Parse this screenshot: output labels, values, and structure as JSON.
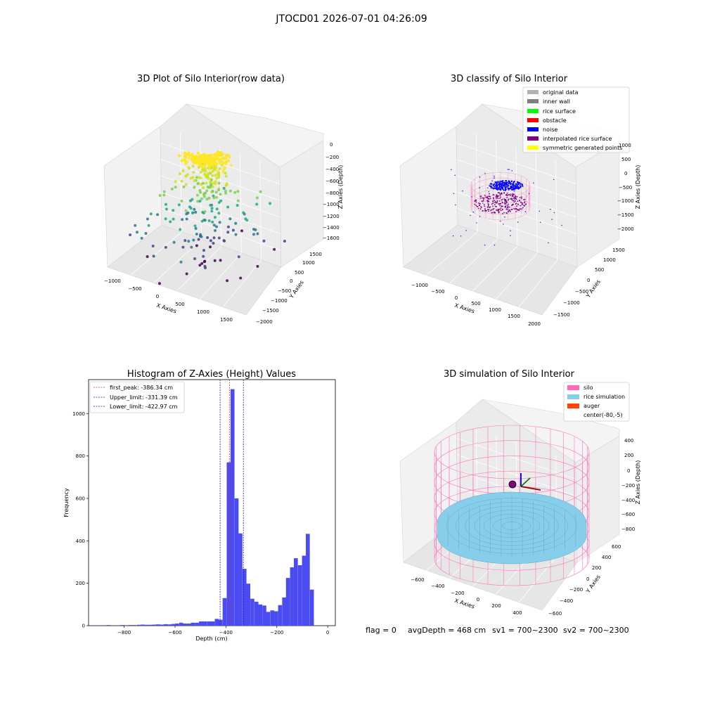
{
  "suptitle": "JTOCD01 2026-07-01 04:26:09",
  "footer": {
    "flag": "flag = 0",
    "avg": "avgDepth = 468 cm",
    "sv1": "sv1 = 700~2300",
    "sv2": "sv2 = 700~2300"
  },
  "colors": {
    "hist_bar": "#4b4bf2",
    "peak_line": "#e03030",
    "limit_line": "#1a1ad6",
    "silo": "#ff69b4",
    "rice": "#87ceeb",
    "auger": "#ff4500",
    "pane": "#f2f2f2"
  },
  "chart_data": [
    {
      "id": "raw",
      "type": "scatter",
      "title": "3D Plot of Silo Interior(row data)",
      "xlabel": "X Axies",
      "ylabel": "Y Axies",
      "zlabel": "Z Axies (Depth)",
      "x_ticks": [
        "−1000",
        "−500",
        "0",
        "500",
        "1000",
        "1500"
      ],
      "y_ticks": [
        "−2000",
        "−1500",
        "−1000",
        "−500",
        "0",
        "500",
        "1000",
        "1500"
      ],
      "z_ticks": [
        "0",
        "−200",
        "−400",
        "−600",
        "−800",
        "−1000",
        "−1200",
        "−1400",
        "−1600"
      ],
      "colormap": "viridis"
    },
    {
      "id": "classify",
      "type": "scatter",
      "title": "3D classify of Silo Interior",
      "xlabel": "X Axies",
      "ylabel": "Y Axies",
      "zlabel": "Z Axies (Depth)",
      "x_ticks": [
        "−1000",
        "−500",
        "0",
        "500",
        "1000",
        "1500",
        "2000"
      ],
      "y_ticks": [
        "−1500",
        "−1000",
        "−500",
        "0",
        "500",
        "1000",
        "1500"
      ],
      "z_ticks": [
        "1000",
        "500",
        "0",
        "−500",
        "−1000",
        "−1500",
        "−2000"
      ],
      "legend": [
        {
          "name": "original data",
          "color": "#b3b3b3"
        },
        {
          "name": "inner wall",
          "color": "#808080"
        },
        {
          "name": "rice surface",
          "color": "#00ff00"
        },
        {
          "name": "obstacle",
          "color": "#ff0000"
        },
        {
          "name": "noise",
          "color": "#0000ff"
        },
        {
          "name": "interpolated rice surface",
          "color": "#800080"
        },
        {
          "name": "symmetric generated points",
          "color": "#ffff00"
        }
      ],
      "legend_loc": "upper right"
    },
    {
      "id": "hist",
      "type": "bar",
      "title": "Histogram of Z-Axies (Height) Values",
      "xlabel": "Depth (cm)",
      "ylabel": "Frequency",
      "xlim": [
        -940,
        30
      ],
      "ylim": [
        0,
        1160
      ],
      "x_ticks": [
        -800,
        -600,
        -400,
        -200,
        0
      ],
      "x_tick_labels": [
        "−800",
        "−600",
        "−400",
        "−200",
        "0"
      ],
      "y_ticks": [
        0,
        200,
        400,
        600,
        800,
        1000
      ],
      "bin_width": 15.6,
      "bins": [
        {
          "x": -910,
          "h": 2
        },
        {
          "x": -870,
          "h": 3
        },
        {
          "x": -815,
          "h": 3
        },
        {
          "x": -800,
          "h": 2
        },
        {
          "x": -785,
          "h": 3
        },
        {
          "x": -770,
          "h": 3
        },
        {
          "x": -750,
          "h": 4
        },
        {
          "x": -735,
          "h": 5
        },
        {
          "x": -720,
          "h": 4
        },
        {
          "x": -705,
          "h": 4
        },
        {
          "x": -690,
          "h": 5
        },
        {
          "x": -675,
          "h": 6
        },
        {
          "x": -660,
          "h": 5
        },
        {
          "x": -645,
          "h": 7
        },
        {
          "x": -630,
          "h": 6
        },
        {
          "x": -615,
          "h": 8
        },
        {
          "x": -600,
          "h": 10
        },
        {
          "x": -584,
          "h": 14
        },
        {
          "x": -569,
          "h": 10
        },
        {
          "x": -553,
          "h": 10
        },
        {
          "x": -538,
          "h": 14
        },
        {
          "x": -522,
          "h": 14
        },
        {
          "x": -506,
          "h": 20
        },
        {
          "x": -491,
          "h": 20
        },
        {
          "x": -475,
          "h": 20
        },
        {
          "x": -460,
          "h": 20
        },
        {
          "x": -444,
          "h": 32
        },
        {
          "x": -429,
          "h": 28
        },
        {
          "x": -413,
          "h": 130
        },
        {
          "x": -397,
          "h": 770
        },
        {
          "x": -382,
          "h": 1115
        },
        {
          "x": -366,
          "h": 600
        },
        {
          "x": -351,
          "h": 435
        },
        {
          "x": -335,
          "h": 268
        },
        {
          "x": -320,
          "h": 198
        },
        {
          "x": -304,
          "h": 127
        },
        {
          "x": -288,
          "h": 113
        },
        {
          "x": -273,
          "h": 100
        },
        {
          "x": -257,
          "h": 95
        },
        {
          "x": -242,
          "h": 65
        },
        {
          "x": -226,
          "h": 72
        },
        {
          "x": -211,
          "h": 68
        },
        {
          "x": -195,
          "h": 97
        },
        {
          "x": -179,
          "h": 133
        },
        {
          "x": -164,
          "h": 225
        },
        {
          "x": -148,
          "h": 275
        },
        {
          "x": -133,
          "h": 318
        },
        {
          "x": -117,
          "h": 285
        },
        {
          "x": -101,
          "h": 330
        },
        {
          "x": -86,
          "h": 433
        },
        {
          "x": -70,
          "h": 170
        }
      ],
      "vlines": [
        {
          "label": "first_peak: -386.34 cm",
          "x": -386.34,
          "color": "#e03030"
        },
        {
          "label": "Upper_limit: -331.39 cm",
          "x": -331.39,
          "color": "#1a1ad6"
        },
        {
          "label": "Lower_limit: -422.97 cm",
          "x": -422.97,
          "color": "#1a1ad6"
        }
      ],
      "legend_loc": "upper left"
    },
    {
      "id": "sim",
      "type": "scatter",
      "title": "3D simulation of Silo Interior",
      "xlabel": "X Axies",
      "ylabel": "Y Axies",
      "zlabel": "Z Axies (Depth)",
      "x_ticks": [
        "−600",
        "−400",
        "−200",
        "0",
        "200",
        "400"
      ],
      "y_ticks": [
        "−600",
        "−400",
        "−200",
        "0",
        "200",
        "400",
        "600"
      ],
      "z_ticks": [
        "400",
        "200",
        "0",
        "−200",
        "−400",
        "−600",
        "−800"
      ],
      "legend": [
        {
          "name": "silo",
          "color": "#ff69b4"
        },
        {
          "name": "rice simulation",
          "color": "#87ceeb"
        },
        {
          "name": "auger",
          "color": "#ff4500"
        },
        {
          "name": "center(-80,-5)",
          "color": "#ffffff"
        }
      ],
      "legend_loc": "upper right"
    }
  ]
}
